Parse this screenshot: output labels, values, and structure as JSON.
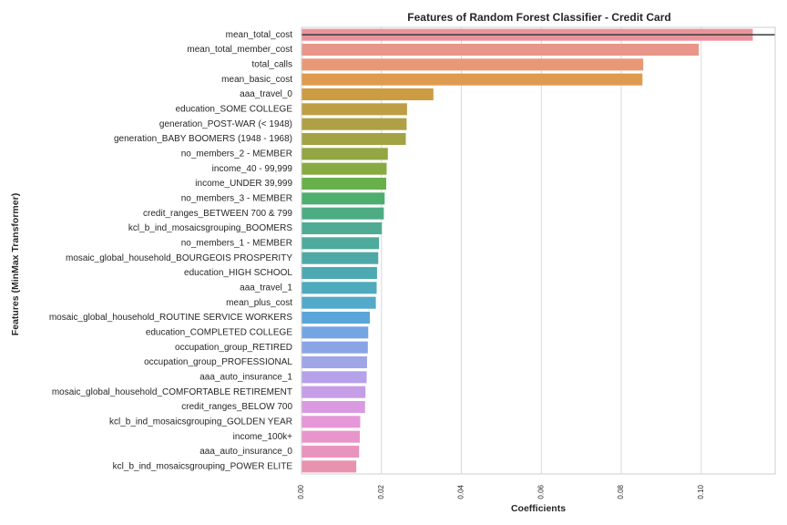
{
  "chart_data": {
    "type": "bar",
    "orientation": "horizontal",
    "title": "Features of Random Forest Classifier - Credit Card",
    "xlabel": "Coefficients",
    "ylabel": "Features (MinMax Transformer)",
    "xlim": [
      0,
      0.1185
    ],
    "xticks": [
      0.0,
      0.02,
      0.04,
      0.06,
      0.08,
      0.1
    ],
    "xtick_labels": [
      "0.00",
      "0.02",
      "0.04",
      "0.06",
      "0.08",
      "0.10"
    ],
    "grid": true,
    "reference_line_y": "mean_total_cost",
    "categories": [
      "mean_total_cost",
      "mean_total_member_cost",
      "total_calls",
      "mean_basic_cost",
      "aaa_travel_0",
      "education_SOME COLLEGE",
      "generation_POST-WAR (< 1948)",
      "generation_BABY BOOMERS (1948 - 1968)",
      "no_members_2 - MEMBER",
      "income_40 - 99,999",
      "income_UNDER 39,999",
      "no_members_3 - MEMBER",
      "credit_ranges_BETWEEN 700 & 799",
      "kcl_b_ind_mosaicsgrouping_BOOMERS",
      "no_members_1 - MEMBER",
      "mosaic_global_household_BOURGEOIS PROSPERITY",
      "education_HIGH SCHOOL",
      "aaa_travel_1",
      "mean_plus_cost",
      "mosaic_global_household_ROUTINE SERVICE WORKERS",
      "education_COMPLETED COLLEGE",
      "occupation_group_RETIRED",
      "occupation_group_PROFESSIONAL",
      "aaa_auto_insurance_1",
      "mosaic_global_household_COMFORTABLE RETIREMENT",
      "credit_ranges_BELOW 700",
      "kcl_b_ind_mosaicsgrouping_GOLDEN YEAR",
      "income_100k+",
      "aaa_auto_insurance_0",
      "kcl_b_ind_mosaicsgrouping_POWER ELITE"
    ],
    "values": [
      0.1129,
      0.0994,
      0.0855,
      0.0853,
      0.033,
      0.0264,
      0.0263,
      0.0261,
      0.0216,
      0.0213,
      0.0212,
      0.0208,
      0.0206,
      0.0201,
      0.0194,
      0.0192,
      0.0189,
      0.0188,
      0.0186,
      0.0171,
      0.0167,
      0.0166,
      0.0164,
      0.0163,
      0.016,
      0.0159,
      0.0147,
      0.0146,
      0.0144,
      0.0137
    ],
    "colors": [
      "#e9949c",
      "#e8968a",
      "#e99877",
      "#de9b4f",
      "#cc9c43",
      "#bd9e45",
      "#b0a045",
      "#a2a344",
      "#92a643",
      "#87aa42",
      "#68b04b",
      "#4dae6d",
      "#4eac84",
      "#4fab93",
      "#4daa9d",
      "#4ea9a6",
      "#4ca9b1",
      "#4eaabc",
      "#52a9c9",
      "#5aa6d8",
      "#73a5e3",
      "#8aa5e6",
      "#a0a5e8",
      "#b5a2ea",
      "#c69ee8",
      "#d99ae2",
      "#e597d8",
      "#e895cc",
      "#e993bf",
      "#e992b0"
    ]
  }
}
